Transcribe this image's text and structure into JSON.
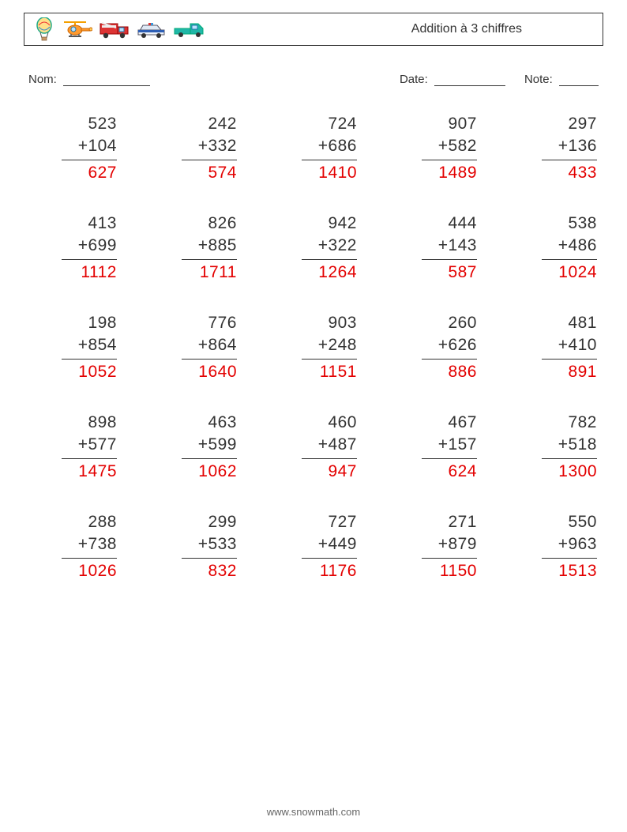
{
  "header": {
    "title": "Addition à 3 chiffres"
  },
  "meta": {
    "name_label": "Nom:",
    "date_label": "Date:",
    "note_label": "Note:"
  },
  "style": {
    "answer_color": "#e30000",
    "text_color": "#333333",
    "font_size_problem": 21,
    "rule_color": "#333333"
  },
  "problems": [
    {
      "a": 523,
      "b": 104,
      "sum": 627
    },
    {
      "a": 242,
      "b": 332,
      "sum": 574
    },
    {
      "a": 724,
      "b": 686,
      "sum": 1410
    },
    {
      "a": 907,
      "b": 582,
      "sum": 1489
    },
    {
      "a": 297,
      "b": 136,
      "sum": 433
    },
    {
      "a": 413,
      "b": 699,
      "sum": 1112
    },
    {
      "a": 826,
      "b": 885,
      "sum": 1711
    },
    {
      "a": 942,
      "b": 322,
      "sum": 1264
    },
    {
      "a": 444,
      "b": 143,
      "sum": 587
    },
    {
      "a": 538,
      "b": 486,
      "sum": 1024
    },
    {
      "a": 198,
      "b": 854,
      "sum": 1052
    },
    {
      "a": 776,
      "b": 864,
      "sum": 1640
    },
    {
      "a": 903,
      "b": 248,
      "sum": 1151
    },
    {
      "a": 260,
      "b": 626,
      "sum": 886
    },
    {
      "a": 481,
      "b": 410,
      "sum": 891
    },
    {
      "a": 898,
      "b": 577,
      "sum": 1475
    },
    {
      "a": 463,
      "b": 599,
      "sum": 1062
    },
    {
      "a": 460,
      "b": 487,
      "sum": 947
    },
    {
      "a": 467,
      "b": 157,
      "sum": 624
    },
    {
      "a": 782,
      "b": 518,
      "sum": 1300
    },
    {
      "a": 288,
      "b": 738,
      "sum": 1026
    },
    {
      "a": 299,
      "b": 533,
      "sum": 832
    },
    {
      "a": 727,
      "b": 449,
      "sum": 1176
    },
    {
      "a": 271,
      "b": 879,
      "sum": 1150
    },
    {
      "a": 550,
      "b": 963,
      "sum": 1513
    }
  ],
  "footer": {
    "text": "www.snowmath.com"
  }
}
